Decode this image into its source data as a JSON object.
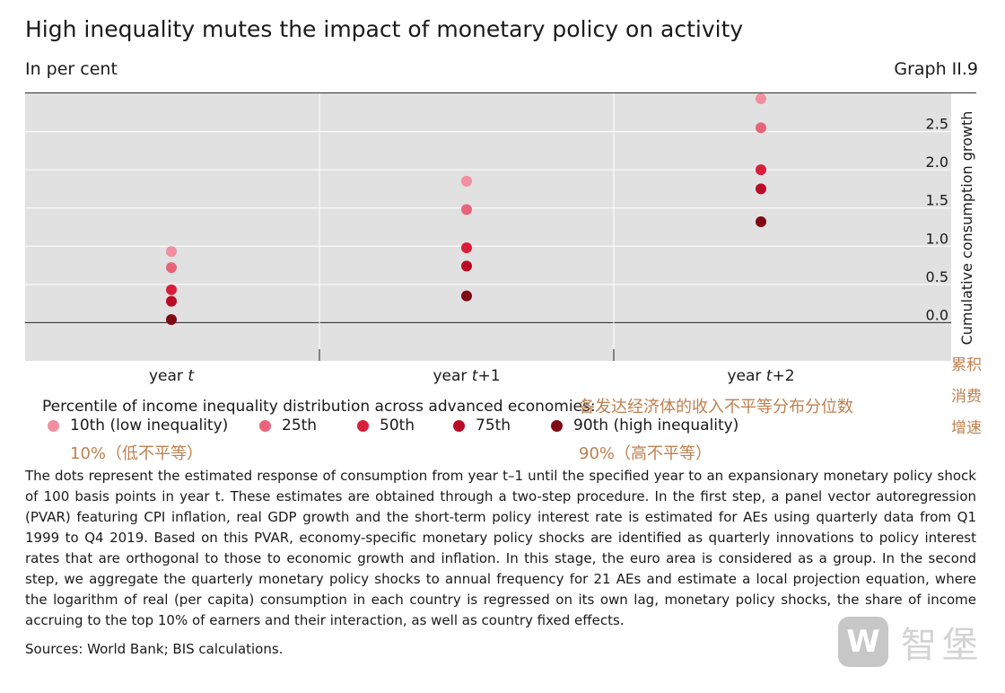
{
  "header": {
    "title": "High inequality mutes the impact of monetary policy on activity",
    "unit": "In per cent",
    "graph_id": "Graph II.9"
  },
  "chart_data": {
    "type": "scatter",
    "categories": [
      "year t",
      "year t+1",
      "year t+2"
    ],
    "category_parts": [
      {
        "prefix": "year ",
        "var": "t",
        "suffix": ""
      },
      {
        "prefix": "year ",
        "var": "t",
        "suffix": "+1"
      },
      {
        "prefix": "year ",
        "var": "t",
        "suffix": "+2"
      }
    ],
    "ylabel": "Cumulative consumption growth",
    "ylim": [
      -0.5,
      3.0
    ],
    "yticks": [
      0.0,
      0.5,
      1.0,
      1.5,
      2.0,
      2.5
    ],
    "ytick_labels": [
      "0.0",
      "0.5",
      "1.0",
      "1.5",
      "2.0",
      "2.5"
    ],
    "grid": true,
    "series": [
      {
        "name": "10th (low inequality)",
        "color": "#ef8fa0",
        "values": [
          0.93,
          1.85,
          2.93
        ]
      },
      {
        "name": "25th",
        "color": "#e86479",
        "values": [
          0.72,
          1.48,
          2.55
        ]
      },
      {
        "name": "50th",
        "color": "#d81e3a",
        "values": [
          0.43,
          0.98,
          2.0
        ]
      },
      {
        "name": "75th",
        "color": "#ba0b26",
        "values": [
          0.28,
          0.74,
          1.75
        ]
      },
      {
        "name": "90th (high inequality)",
        "color": "#7f0a14",
        "values": [
          0.04,
          0.35,
          1.32
        ]
      }
    ]
  },
  "annotations": {
    "ylabel_cn": [
      "累积",
      "消费",
      "增速"
    ],
    "legend_title_cn": "各发达经济体的收入不平等分布分位数",
    "low_cn": "10%（低不平等）",
    "high_cn": "90%（高不平等）"
  },
  "legend": {
    "title": "Percentile of income inequality distribution across advanced economies:"
  },
  "footnote": "The dots represent the estimated response of consumption from year t–1 until the specified year to an expansionary monetary policy shock of 100 basis points in year t. These estimates are obtained through a two-step procedure. In the first step, a panel vector autoregression (PVAR) featuring CPI inflation, real GDP growth and the short-term policy interest rate is estimated for AEs using quarterly data from Q1 1999 to Q4 2019. Based on this PVAR, economy-specific monetary policy shocks are identified as quarterly innovations to policy interest rates that are orthogonal to those to economic growth and inflation. In this stage, the euro area is considered as a group. In the second step, we aggregate the quarterly monetary policy shocks to annual frequency for 21 AEs and estimate a local projection equation, where the logarithm of real (per capita) consumption in each country is regressed on its own lag, monetary policy shocks, the share of income accruing to the top 10% of earners and their interaction, as well as country fixed effects.",
  "sources": "Sources: World Bank; BIS calculations.",
  "watermark": {
    "logo_letter": "W",
    "text": "智堡"
  }
}
